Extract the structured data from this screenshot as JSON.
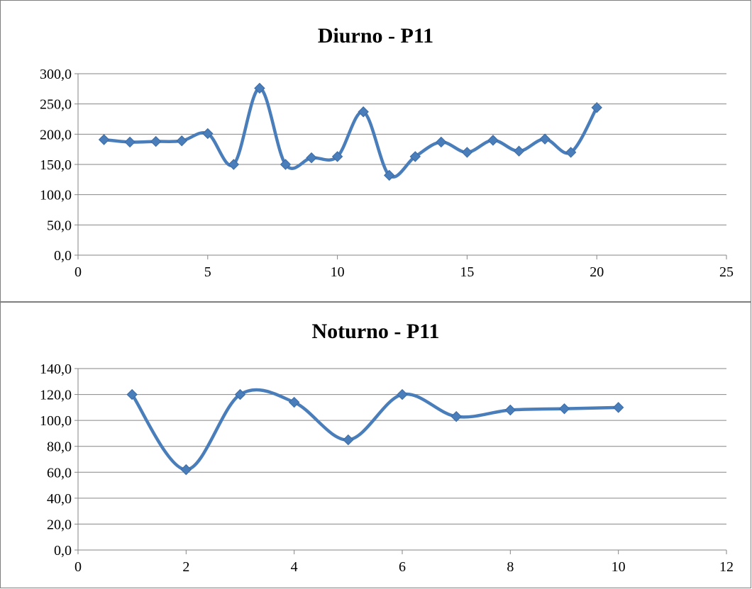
{
  "colors": {
    "series": "#4a7ebb",
    "marker": "#4a7ebb",
    "grid": "#868686",
    "axis": "#868686"
  },
  "chart_data": [
    {
      "type": "scatter",
      "style": "smoothed lines with diamond markers",
      "title": "Diurno - P11",
      "xlabel": "",
      "ylabel": "",
      "xlim": [
        0,
        25
      ],
      "ylim": [
        0,
        300
      ],
      "x_ticks": [
        "0",
        "5",
        "10",
        "15",
        "20",
        "25"
      ],
      "y_ticks": [
        "0,0",
        "50,0",
        "100,0",
        "150,0",
        "200,0",
        "250,0",
        "300,0"
      ],
      "grid": "horizontal",
      "legend": "none",
      "series": [
        {
          "x": [
            1,
            2,
            3,
            4,
            5,
            6,
            7,
            8,
            9,
            10,
            11,
            12,
            13,
            14,
            15,
            16,
            17,
            18,
            19,
            20
          ],
          "y": [
            191,
            187,
            188,
            189,
            201,
            150,
            276,
            150,
            161,
            163,
            237,
            132,
            163,
            187,
            170,
            190,
            172,
            192,
            170,
            244
          ]
        }
      ]
    },
    {
      "type": "scatter",
      "style": "smoothed lines with diamond markers",
      "title": "Noturno - P11",
      "xlabel": "",
      "ylabel": "",
      "xlim": [
        0,
        12
      ],
      "ylim": [
        0,
        140
      ],
      "x_ticks": [
        "0",
        "2",
        "4",
        "6",
        "8",
        "10",
        "12"
      ],
      "y_ticks": [
        "0,0",
        "20,0",
        "40,0",
        "60,0",
        "80,0",
        "100,0",
        "120,0",
        "140,0"
      ],
      "grid": "horizontal",
      "legend": "none",
      "series": [
        {
          "x": [
            1,
            2,
            3,
            4,
            5,
            6,
            7,
            8,
            9,
            10
          ],
          "y": [
            120,
            62,
            120,
            114,
            85,
            120,
            103,
            108,
            109,
            110
          ]
        }
      ]
    }
  ]
}
